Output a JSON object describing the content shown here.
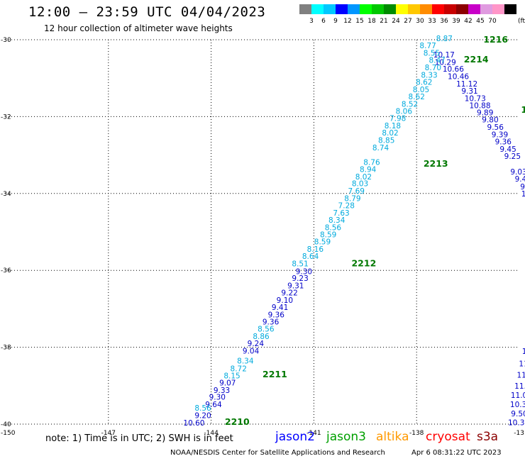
{
  "header": {
    "title": "12:00 – 23:59 UTC 04/04/2023",
    "subtitle": "12 hour collection of altimeter wave heights"
  },
  "legend": {
    "unit": "(ft)",
    "colors": [
      "#808080",
      "#00ffff",
      "#00c8ff",
      "#0000ff",
      "#0096ff",
      "#00ff00",
      "#00c800",
      "#008c00",
      "#ffff00",
      "#ffc800",
      "#ff8c00",
      "#ff0000",
      "#c80000",
      "#8c0000",
      "#c800c8",
      "#e09be0",
      "#ff96c8",
      "#000000"
    ],
    "ticks": [
      "3",
      "6",
      "9",
      "12",
      "15",
      "18",
      "21",
      "24",
      "27",
      "30",
      "33",
      "36",
      "39",
      "42",
      "45",
      "70"
    ]
  },
  "map": {
    "lon_range": [
      -150,
      -135
    ],
    "lat_range": [
      -40,
      -30
    ],
    "lat_labels": [
      "-30",
      "-32",
      "-34",
      "-36",
      "-38",
      "-40"
    ],
    "lon_labels": [
      "-150",
      "-147",
      "-144",
      "-141",
      "-138",
      "-13"
    ]
  },
  "tracks": [
    {
      "satellite": "jason2",
      "color": "#0000c8",
      "points": [
        {
          "lon": -144.5,
          "lat": -39.96,
          "value": "10.60"
        },
        {
          "lon": -144.24,
          "lat": -39.77,
          "value": "9.20"
        },
        {
          "lon": -143.93,
          "lat": -39.48,
          "value": "9.64"
        },
        {
          "lon": -143.82,
          "lat": -39.29,
          "value": "9.30"
        },
        {
          "lon": -143.69,
          "lat": -39.11,
          "value": "9.33"
        },
        {
          "lon": -143.52,
          "lat": -38.92,
          "value": "9.07"
        },
        {
          "lon": -142.84,
          "lat": -38.09,
          "value": "9.04"
        },
        {
          "lon": -142.7,
          "lat": -37.9,
          "value": "9.24"
        },
        {
          "lon": -142.26,
          "lat": -37.33,
          "value": "9.36"
        },
        {
          "lon": -142.1,
          "lat": -37.15,
          "value": "9.36"
        },
        {
          "lon": -141.99,
          "lat": -36.96,
          "value": "9.41"
        },
        {
          "lon": -141.85,
          "lat": -36.77,
          "value": "9.10"
        },
        {
          "lon": -141.71,
          "lat": -36.58,
          "value": "9.22"
        },
        {
          "lon": -141.53,
          "lat": -36.39,
          "value": "9.31"
        },
        {
          "lon": -141.4,
          "lat": -36.2,
          "value": "9.23"
        },
        {
          "lon": -141.29,
          "lat": -36.02,
          "value": "9.30"
        },
        {
          "lon": -137.2,
          "lat": -30.39,
          "value": "10.17"
        },
        {
          "lon": -137.16,
          "lat": -30.58,
          "value": "10.29"
        },
        {
          "lon": -136.93,
          "lat": -30.76,
          "value": "10.66"
        },
        {
          "lon": -136.78,
          "lat": -30.95,
          "value": "10.46"
        },
        {
          "lon": -136.53,
          "lat": -31.14,
          "value": "11.12"
        },
        {
          "lon": -136.45,
          "lat": -31.33,
          "value": "9.31"
        },
        {
          "lon": -136.29,
          "lat": -31.52,
          "value": "10.73"
        },
        {
          "lon": -136.15,
          "lat": -31.71,
          "value": "10.88"
        },
        {
          "lon": -136.0,
          "lat": -31.89,
          "value": "9.89"
        },
        {
          "lon": -135.85,
          "lat": -32.08,
          "value": "9.80"
        },
        {
          "lon": -135.7,
          "lat": -32.27,
          "value": "9.56"
        },
        {
          "lon": -135.57,
          "lat": -32.46,
          "value": "9.39"
        },
        {
          "lon": -135.47,
          "lat": -32.65,
          "value": "9.36"
        },
        {
          "lon": -135.33,
          "lat": -32.84,
          "value": "9.45"
        },
        {
          "lon": -135.2,
          "lat": -33.03,
          "value": "9.25"
        },
        {
          "lon": -135.02,
          "lat": -33.43,
          "value": "9.03"
        },
        {
          "lon": -134.89,
          "lat": -33.62,
          "value": "9.49"
        },
        {
          "lon": -134.8,
          "lat": -33.82,
          "value": "9.3"
        },
        {
          "lon": -134.77,
          "lat": -34.0,
          "value": "10."
        },
        {
          "lon": -134.7,
          "lat": -34.0,
          "value": "9"
        },
        {
          "lon": -134.75,
          "lat": -37.83,
          "value": "1"
        },
        {
          "lon": -134.75,
          "lat": -38.1,
          "value": "11."
        },
        {
          "lon": -134.77,
          "lat": -38.42,
          "value": "11.4"
        },
        {
          "lon": -134.83,
          "lat": -38.72,
          "value": "11.4"
        },
        {
          "lon": -134.83,
          "lat": -39.0,
          "value": "11.83"
        },
        {
          "lon": -134.94,
          "lat": -39.24,
          "value": "11.06"
        },
        {
          "lon": -134.96,
          "lat": -39.48,
          "value": "10.38"
        },
        {
          "lon": -135.0,
          "lat": -39.72,
          "value": "9.50"
        },
        {
          "lon": -135.02,
          "lat": -39.95,
          "value": "10.37"
        }
      ]
    },
    {
      "satellite": "jason3",
      "color": "#00aadd",
      "points": [
        {
          "lon": -144.24,
          "lat": -39.58,
          "value": "8.56"
        },
        {
          "lon": -143.39,
          "lat": -38.74,
          "value": "8.15"
        },
        {
          "lon": -143.2,
          "lat": -38.55,
          "value": "8.72"
        },
        {
          "lon": -143.0,
          "lat": -38.35,
          "value": "8.34"
        },
        {
          "lon": -142.54,
          "lat": -37.71,
          "value": "8.86"
        },
        {
          "lon": -142.4,
          "lat": -37.52,
          "value": "8.56"
        },
        {
          "lon": -141.4,
          "lat": -35.82,
          "value": "8.51"
        },
        {
          "lon": -141.1,
          "lat": -35.63,
          "value": "8.64"
        },
        {
          "lon": -140.96,
          "lat": -35.44,
          "value": "8.16"
        },
        {
          "lon": -140.75,
          "lat": -35.25,
          "value": "8.59"
        },
        {
          "lon": -140.58,
          "lat": -35.06,
          "value": "8.59"
        },
        {
          "lon": -140.44,
          "lat": -34.88,
          "value": "8.56"
        },
        {
          "lon": -140.33,
          "lat": -34.69,
          "value": "8.34"
        },
        {
          "lon": -140.2,
          "lat": -34.5,
          "value": "7.63"
        },
        {
          "lon": -140.05,
          "lat": -34.31,
          "value": "7.28"
        },
        {
          "lon": -139.87,
          "lat": -34.12,
          "value": "8.79"
        },
        {
          "lon": -139.76,
          "lat": -33.93,
          "value": "7.69"
        },
        {
          "lon": -139.65,
          "lat": -33.74,
          "value": "8.03"
        },
        {
          "lon": -139.55,
          "lat": -33.56,
          "value": "8.02"
        },
        {
          "lon": -139.42,
          "lat": -33.37,
          "value": "8.94"
        },
        {
          "lon": -139.31,
          "lat": -33.18,
          "value": "8.76"
        },
        {
          "lon": -139.05,
          "lat": -32.8,
          "value": "8.74"
        },
        {
          "lon": -138.88,
          "lat": -32.61,
          "value": "8.85"
        },
        {
          "lon": -138.77,
          "lat": -32.42,
          "value": "8.02"
        },
        {
          "lon": -138.7,
          "lat": -32.23,
          "value": "8.18"
        },
        {
          "lon": -138.55,
          "lat": -32.04,
          "value": "7.98"
        },
        {
          "lon": -138.37,
          "lat": -31.85,
          "value": "8.06"
        },
        {
          "lon": -138.2,
          "lat": -31.67,
          "value": "8.52"
        },
        {
          "lon": -138.0,
          "lat": -31.48,
          "value": "8.62"
        },
        {
          "lon": -137.87,
          "lat": -31.29,
          "value": "8.05"
        },
        {
          "lon": -137.78,
          "lat": -31.1,
          "value": "8.62"
        },
        {
          "lon": -137.63,
          "lat": -30.91,
          "value": "8.33"
        },
        {
          "lon": -137.52,
          "lat": -30.72,
          "value": "8.70"
        },
        {
          "lon": -137.4,
          "lat": -30.53,
          "value": "8.47"
        },
        {
          "lon": -137.56,
          "lat": -30.34,
          "value": "8.55"
        },
        {
          "lon": -137.67,
          "lat": -30.15,
          "value": "8.77"
        },
        {
          "lon": -137.19,
          "lat": -29.96,
          "value": "8.87"
        }
      ]
    }
  ],
  "time_labels": [
    {
      "text": "2210",
      "lon": -143.6,
      "lat": -39.93
    },
    {
      "text": "2211",
      "lon": -142.5,
      "lat": -38.69
    },
    {
      "text": "2212",
      "lon": -139.9,
      "lat": -35.8
    },
    {
      "text": "2213",
      "lon": -137.8,
      "lat": -33.21
    },
    {
      "text": "1216",
      "lon": -136.05,
      "lat": -29.98
    },
    {
      "text": "2214",
      "lon": -136.62,
      "lat": -30.5
    },
    {
      "text": "1217",
      "lon": -134.95,
      "lat": -31.81
    }
  ],
  "footer": {
    "note": "note:  1) Time is in UTC;  2) SWH is in feet",
    "satellites": [
      {
        "name": "jason2",
        "color": "#0000ff"
      },
      {
        "name": "jason3",
        "color": "#00a000"
      },
      {
        "name": "altika",
        "color": "#ff9900"
      },
      {
        "name": "cryosat",
        "color": "#ff0000"
      },
      {
        "name": "s3a",
        "color": "#8b0000"
      }
    ],
    "credit": "NOAA/NESDIS Center for Satellite Applications and Research",
    "timestamp": "Apr  6 08:31:22 UTC 2023"
  }
}
